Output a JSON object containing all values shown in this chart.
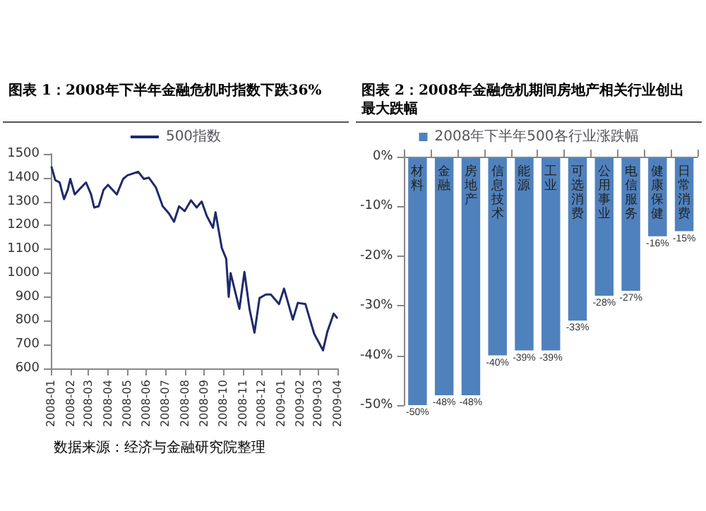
{
  "chart_data": [
    {
      "type": "line",
      "title": "图表 1：2008年下半年金融危机时指数下跌36%",
      "legend": "top",
      "annotations": [
        "数据来源：经济与金融研究院整理"
      ],
      "xlim": [
        "2008-01",
        "2009-04"
      ],
      "xticks": [
        "2008-01",
        "2008-02",
        "2008-03",
        "2008-04",
        "2008-05",
        "2008-06",
        "2008-07",
        "2008-08",
        "2008-09",
        "2008-10",
        "2008-11",
        "2008-12",
        "2009-01",
        "2009-02",
        "2009-03",
        "2009-04"
      ],
      "ylim": [
        600,
        1500
      ],
      "yticks": [
        600,
        700,
        800,
        900,
        1000,
        1100,
        1200,
        1300,
        1400,
        1500
      ],
      "series": [
        {
          "name": "500指数",
          "color": "#1f2a6b",
          "x": [
            "2008-01-02",
            "2008-01-08",
            "2008-01-15",
            "2008-01-22",
            "2008-01-28",
            "2008-02-01",
            "2008-02-08",
            "2008-02-15",
            "2008-02-26",
            "2008-03-05",
            "2008-03-10",
            "2008-03-17",
            "2008-03-25",
            "2008-04-01",
            "2008-04-15",
            "2008-04-25",
            "2008-05-02",
            "2008-05-19",
            "2008-05-28",
            "2008-06-05",
            "2008-06-16",
            "2008-06-27",
            "2008-07-07",
            "2008-07-15",
            "2008-07-23",
            "2008-08-01",
            "2008-08-11",
            "2008-08-20",
            "2008-08-28",
            "2008-09-05",
            "2008-09-15",
            "2008-09-19",
            "2008-09-29",
            "2008-10-06",
            "2008-10-10",
            "2008-10-13",
            "2008-10-27",
            "2008-11-04",
            "2008-11-12",
            "2008-11-20",
            "2008-11-28",
            "2008-12-08",
            "2008-12-16",
            "2008-12-29",
            "2009-01-06",
            "2009-01-20",
            "2009-01-28",
            "2009-02-09",
            "2009-02-23",
            "2009-03-09",
            "2009-03-16",
            "2009-03-26",
            "2009-04-01"
          ],
          "values": [
            1447,
            1390,
            1380,
            1310,
            1350,
            1395,
            1330,
            1350,
            1380,
            1330,
            1275,
            1280,
            1350,
            1370,
            1330,
            1395,
            1410,
            1425,
            1395,
            1400,
            1360,
            1280,
            1250,
            1215,
            1280,
            1260,
            1305,
            1275,
            1300,
            1240,
            1190,
            1255,
            1105,
            1060,
            900,
            1000,
            850,
            1005,
            850,
            750,
            895,
            910,
            910,
            870,
            935,
            805,
            875,
            870,
            745,
            676,
            755,
            830,
            810
          ]
        }
      ]
    },
    {
      "type": "bar",
      "title": "图表 2：2008年金融危机期间房地产相关行业创出最大跌幅",
      "legend": "top",
      "categories": [
        "材料",
        "金融",
        "房地产",
        "信息技术",
        "能源",
        "工业",
        "可选消费",
        "公用事业",
        "电信服务",
        "健康保健",
        "日常消费"
      ],
      "ylim": [
        -50,
        0
      ],
      "yticks": [
        {
          "value": 0,
          "label": "0%"
        },
        {
          "value": -10,
          "label": "-10%"
        },
        {
          "value": -20,
          "label": "-20%"
        },
        {
          "value": -30,
          "label": "-30%"
        },
        {
          "value": -40,
          "label": "-40%"
        },
        {
          "value": -50,
          "label": "-50%"
        }
      ],
      "series": [
        {
          "name": "2008年下半年500各行业涨跌幅",
          "color": "#4f81bd",
          "values": [
            -50,
            -48,
            -48,
            -40,
            -39,
            -39,
            -33,
            -28,
            -27,
            -16,
            -15
          ],
          "value_labels": [
            "-50%",
            "-48%",
            "-48%",
            "-40%",
            "-39%",
            "-39%",
            "-33%",
            "-28%",
            "-27%",
            "-16%",
            "-15%"
          ]
        }
      ]
    }
  ]
}
